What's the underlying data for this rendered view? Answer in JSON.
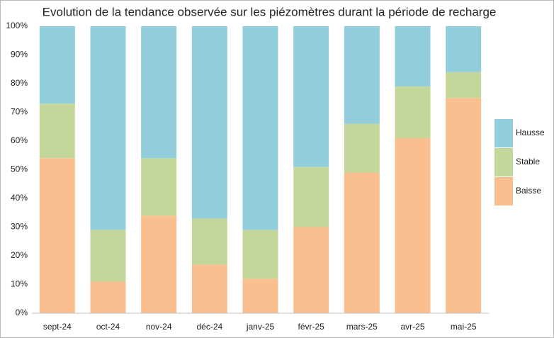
{
  "chart_data": {
    "type": "stacked_bar",
    "title": "Evolution de la tendance observée sur les piézomètres durant la période de recharge",
    "categories": [
      "sept-24",
      "oct-24",
      "nov-24",
      "déc-24",
      "janv-25",
      "févr-25",
      "mars-25",
      "avr-25",
      "mai-25"
    ],
    "series": [
      {
        "name": "Baisse",
        "color": "#f9bf8f",
        "values": [
          54,
          11,
          34,
          17,
          12,
          30,
          49,
          61,
          75
        ]
      },
      {
        "name": "Stable",
        "color": "#c4d79b",
        "values": [
          19,
          18,
          20,
          16,
          17,
          21,
          17,
          18,
          9
        ]
      },
      {
        "name": "Hausse",
        "color": "#92cddc",
        "values": [
          27,
          71,
          46,
          67,
          71,
          49,
          34,
          21,
          16
        ]
      }
    ],
    "ylim": [
      0,
      100
    ],
    "yticks": [
      {
        "value": 0,
        "label": "0%"
      },
      {
        "value": 10,
        "label": "10%"
      },
      {
        "value": 20,
        "label": "20%"
      },
      {
        "value": 30,
        "label": "30%"
      },
      {
        "value": 40,
        "label": "40%"
      },
      {
        "value": 50,
        "label": "50%"
      },
      {
        "value": 60,
        "label": "60%"
      },
      {
        "value": 70,
        "label": "70%"
      },
      {
        "value": 80,
        "label": "80%"
      },
      {
        "value": 90,
        "label": "90%"
      },
      {
        "value": 100,
        "label": "100%"
      }
    ],
    "grid": false,
    "legend": "right"
  }
}
